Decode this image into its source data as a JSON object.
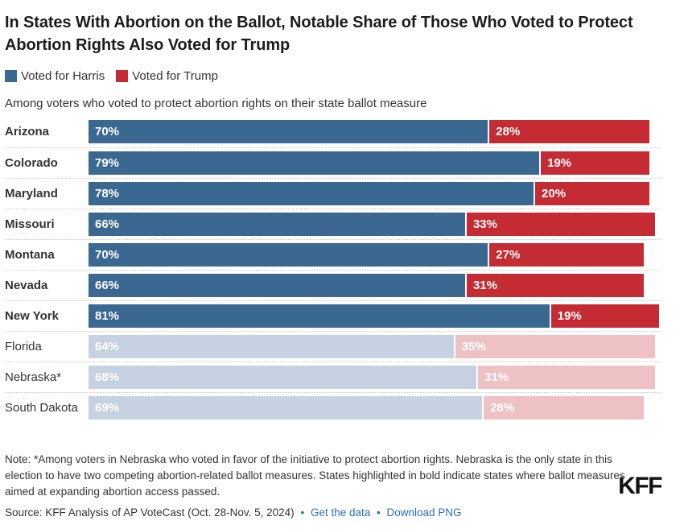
{
  "chart_data": {
    "type": "bar",
    "orientation": "horizontal",
    "stacked": true,
    "title": "In States With Abortion on the Ballot, Notable Share of Those Who Voted to Protect Abortion Rights Also Voted for Trump",
    "subtitle": "Among voters who voted to protect abortion rights on their state ballot measure",
    "legend": {
      "position": "top",
      "entries": [
        {
          "label": "Voted for Harris",
          "color": "#3a6891"
        },
        {
          "label": "Voted for Trump",
          "color": "#c42b33"
        }
      ]
    },
    "categories": [
      "Arizona",
      "Colorado",
      "Maryland",
      "Missouri",
      "Montana",
      "Nevada",
      "New York",
      "Florida",
      "Nebraska*",
      "South Dakota"
    ],
    "series": [
      {
        "name": "Voted for Harris",
        "color": "#3a6891",
        "muted_color": "#c6d2e1",
        "values": [
          70,
          79,
          78,
          66,
          70,
          66,
          81,
          64,
          68,
          69
        ]
      },
      {
        "name": "Voted for Trump",
        "color": "#c42b33",
        "muted_color": "#eec2c4",
        "values": [
          28,
          19,
          20,
          33,
          27,
          31,
          19,
          35,
          31,
          28
        ]
      }
    ],
    "measure_passed": [
      true,
      true,
      true,
      true,
      true,
      true,
      true,
      false,
      false,
      false
    ],
    "xlim": [
      0,
      100
    ],
    "unit": "%",
    "grid": false,
    "value_labels": "inside-start"
  },
  "note": "Note: *Among voters in Nebraska who voted in favor of the initiative to protect abortion rights. Nebraska is the only state in this election to have two competing abortion-related ballot measures. States highlighted in bold indicate states where ballot measures aimed at expanding abortion access passed.",
  "source": {
    "prefix": "Source: KFF Analysis of AP VoteCast (Oct. 28-Nov. 5, 2024)",
    "bullet": "•",
    "links": [
      {
        "label": "Get the data"
      },
      {
        "label": "Download PNG"
      }
    ]
  },
  "logo": "KFF"
}
